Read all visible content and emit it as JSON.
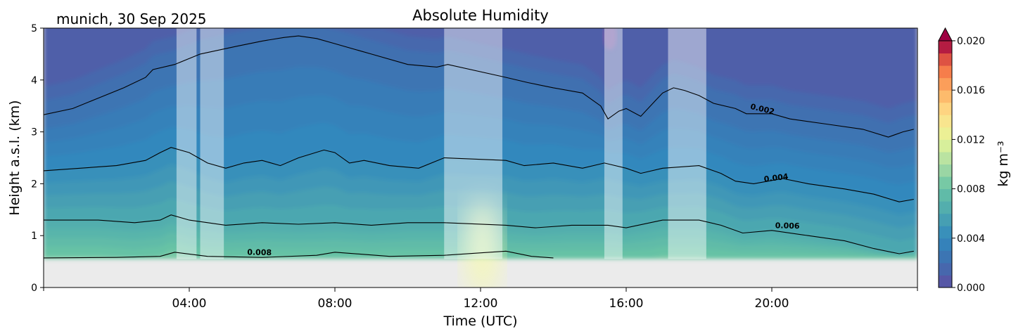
{
  "location_date": "munich, 30 Sep 2025",
  "chart_data": {
    "type": "heatmap",
    "title": "Absolute Humidity",
    "xlabel": "Time (UTC)",
    "ylabel": "Height a.s.l. (km)",
    "xlim_hours": [
      0,
      24
    ],
    "ylim_km": [
      0,
      5
    ],
    "x_ticks": [
      {
        "hour": 4,
        "label": "04:00"
      },
      {
        "hour": 8,
        "label": "08:00"
      },
      {
        "hour": 12,
        "label": "12:00"
      },
      {
        "hour": 16,
        "label": "16:00"
      },
      {
        "hour": 20,
        "label": "20:00"
      }
    ],
    "y_ticks": [
      {
        "value": 0,
        "label": "0"
      },
      {
        "value": 1,
        "label": "1"
      },
      {
        "value": 2,
        "label": "2"
      },
      {
        "value": 3,
        "label": "3"
      },
      {
        "value": 4,
        "label": "4"
      },
      {
        "value": 5,
        "label": "5"
      }
    ],
    "data_bottom_km": 0.55,
    "colorbar": {
      "label": "kg m⁻³",
      "range": [
        0.0,
        0.02
      ],
      "extend": "max",
      "ticks": [
        "0.000",
        "0.004",
        "0.008",
        "0.012",
        "0.016",
        "0.020"
      ],
      "levels": 20
    },
    "contour_lines": [
      {
        "level": 0.002,
        "label": "0.002",
        "label_hour": 19.3,
        "points": [
          [
            0,
            3.33
          ],
          [
            0.8,
            3.45
          ],
          [
            1.5,
            3.65
          ],
          [
            2.2,
            3.85
          ],
          [
            2.8,
            4.05
          ],
          [
            3.0,
            4.2
          ],
          [
            3.6,
            4.3
          ],
          [
            4.3,
            4.5
          ],
          [
            5.3,
            4.65
          ],
          [
            6.0,
            4.75
          ],
          [
            6.6,
            4.82
          ],
          [
            7.0,
            4.85
          ],
          [
            7.5,
            4.8
          ],
          [
            8.0,
            4.7
          ],
          [
            9.0,
            4.5
          ],
          [
            10.0,
            4.3
          ],
          [
            10.8,
            4.25
          ],
          [
            11.1,
            4.3
          ],
          [
            12.7,
            4.05
          ],
          [
            13.3,
            3.95
          ],
          [
            14.0,
            3.85
          ],
          [
            14.8,
            3.75
          ],
          [
            15.3,
            3.5
          ],
          [
            15.5,
            3.25
          ],
          [
            15.8,
            3.4
          ],
          [
            16.0,
            3.45
          ],
          [
            16.4,
            3.3
          ],
          [
            16.8,
            3.6
          ],
          [
            17.0,
            3.75
          ],
          [
            17.3,
            3.85
          ],
          [
            17.6,
            3.8
          ],
          [
            18.0,
            3.7
          ],
          [
            18.4,
            3.55
          ],
          [
            19.0,
            3.45
          ],
          [
            19.3,
            3.35
          ],
          [
            20.0,
            3.35
          ],
          [
            20.5,
            3.25
          ],
          [
            21.5,
            3.15
          ],
          [
            22.5,
            3.05
          ],
          [
            23.2,
            2.9
          ],
          [
            23.6,
            3.0
          ],
          [
            23.9,
            3.05
          ]
        ]
      },
      {
        "level": 0.004,
        "label": "0.004",
        "label_hour": 19.7,
        "points": [
          [
            0,
            2.25
          ],
          [
            1.0,
            2.3
          ],
          [
            2.0,
            2.35
          ],
          [
            2.8,
            2.45
          ],
          [
            3.2,
            2.6
          ],
          [
            3.5,
            2.7
          ],
          [
            4.0,
            2.6
          ],
          [
            4.5,
            2.4
          ],
          [
            5.0,
            2.3
          ],
          [
            5.5,
            2.4
          ],
          [
            6.0,
            2.45
          ],
          [
            6.5,
            2.35
          ],
          [
            7.0,
            2.5
          ],
          [
            7.7,
            2.65
          ],
          [
            8.0,
            2.6
          ],
          [
            8.4,
            2.4
          ],
          [
            8.8,
            2.45
          ],
          [
            9.5,
            2.35
          ],
          [
            10.3,
            2.3
          ],
          [
            11.0,
            2.5
          ],
          [
            12.7,
            2.45
          ],
          [
            13.2,
            2.35
          ],
          [
            14.0,
            2.4
          ],
          [
            14.8,
            2.3
          ],
          [
            15.4,
            2.4
          ],
          [
            16.0,
            2.3
          ],
          [
            16.4,
            2.2
          ],
          [
            17.0,
            2.3
          ],
          [
            18.0,
            2.35
          ],
          [
            18.6,
            2.2
          ],
          [
            19.0,
            2.05
          ],
          [
            19.5,
            2.0
          ],
          [
            20.3,
            2.1
          ],
          [
            21.0,
            2.0
          ],
          [
            22.0,
            1.9
          ],
          [
            22.8,
            1.8
          ],
          [
            23.5,
            1.65
          ],
          [
            23.9,
            1.7
          ]
        ]
      },
      {
        "level": 0.006,
        "label": "0.006",
        "label_hour": 20.0,
        "points": [
          [
            0,
            1.3
          ],
          [
            1.5,
            1.3
          ],
          [
            2.5,
            1.25
          ],
          [
            3.2,
            1.3
          ],
          [
            3.5,
            1.4
          ],
          [
            4.0,
            1.3
          ],
          [
            5.0,
            1.2
          ],
          [
            6.0,
            1.25
          ],
          [
            7.0,
            1.22
          ],
          [
            8.0,
            1.25
          ],
          [
            9.0,
            1.2
          ],
          [
            10.0,
            1.25
          ],
          [
            11.0,
            1.25
          ],
          [
            12.7,
            1.2
          ],
          [
            13.5,
            1.15
          ],
          [
            14.5,
            1.2
          ],
          [
            15.5,
            1.2
          ],
          [
            16.0,
            1.15
          ],
          [
            17.0,
            1.3
          ],
          [
            18.0,
            1.3
          ],
          [
            18.6,
            1.2
          ],
          [
            19.2,
            1.05
          ],
          [
            20.0,
            1.1
          ],
          [
            21.0,
            1.0
          ],
          [
            22.0,
            0.9
          ],
          [
            22.8,
            0.75
          ],
          [
            23.5,
            0.65
          ],
          [
            23.9,
            0.7
          ]
        ]
      },
      {
        "level": 0.008,
        "label": "0.008",
        "label_hour": 5.5,
        "points": [
          [
            0,
            0.57
          ],
          [
            2.0,
            0.58
          ],
          [
            3.2,
            0.6
          ],
          [
            3.6,
            0.68
          ],
          [
            4.5,
            0.6
          ],
          [
            6.0,
            0.58
          ],
          [
            7.5,
            0.62
          ],
          [
            8.0,
            0.68
          ],
          [
            9.5,
            0.6
          ],
          [
            11.0,
            0.62
          ],
          [
            12.7,
            0.7
          ],
          [
            13.4,
            0.6
          ],
          [
            14.0,
            0.57
          ]
        ]
      }
    ],
    "shaded_periods_hours": [
      [
        3.65,
        4.2
      ],
      [
        4.3,
        4.95
      ],
      [
        11.0,
        12.6
      ],
      [
        15.4,
        15.9
      ],
      [
        17.15,
        18.2
      ]
    ]
  }
}
